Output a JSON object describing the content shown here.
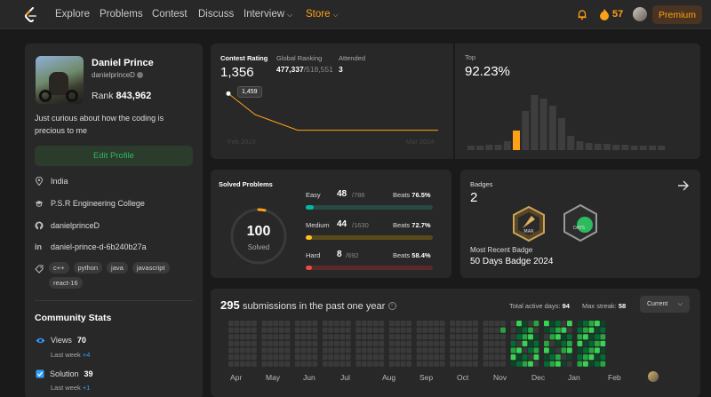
{
  "nav": {
    "items": [
      "Explore",
      "Problems",
      "Contest",
      "Discuss",
      "Interview",
      "Store"
    ],
    "streak": "57",
    "premium": "Premium"
  },
  "profile": {
    "name": "Daniel Prince",
    "handle": "danielprinceD",
    "rank_label": "Rank",
    "rank_value": "843,962",
    "bio": "Just curious about how the coding is precious to me",
    "edit_label": "Edit Profile",
    "location": "India",
    "college": "P.S.R Engineering College",
    "github": "danielprinceD",
    "linkedin": "daniel-prince-d-6b240b27a",
    "tags": [
      "c++",
      "python",
      "java",
      "javascript",
      "react-16"
    ]
  },
  "community": {
    "title": "Community Stats",
    "stats": [
      {
        "label": "Views",
        "value": "70",
        "sub_label": "Last week",
        "sub_value": "+4"
      },
      {
        "label": "Solution",
        "value": "39",
        "sub_label": "Last week",
        "sub_value": "+1"
      }
    ]
  },
  "contest": {
    "rating_label": "Contest Rating",
    "rating_value": "1,356",
    "global_label": "Global Ranking",
    "global_value": "477,337",
    "global_total": "/518,551",
    "attended_label": "Attended",
    "attended_value": "3",
    "tooltip": "1,459",
    "x_start": "Feb 2023",
    "x_end": "Mar 2024",
    "top_label": "Top",
    "top_value": "92.23%"
  },
  "chart_data": {
    "type": "line",
    "x": [
      "Feb 2023",
      "",
      "",
      "Mar 2024"
    ],
    "series": [
      {
        "values": [
          1459,
          1400,
          1356,
          1356
        ]
      }
    ]
  },
  "solved": {
    "title": "Solved Problems",
    "total": "100",
    "total_label": "Solved",
    "diffs": [
      {
        "name": "Easy",
        "count": "48",
        "total": "/786",
        "beats_label": "Beats",
        "beats": "76.5%",
        "fill": 0.061,
        "color": "#00b8a3",
        "track": "#274a45"
      },
      {
        "name": "Medium",
        "count": "44",
        "total": "/1630",
        "beats_label": "Beats",
        "beats": "72.7%",
        "fill": 0.027,
        "color": "#ffc01e",
        "track": "#5a4a1a"
      },
      {
        "name": "Hard",
        "count": "8",
        "total": "/692",
        "beats_label": "Beats",
        "beats": "58.4%",
        "fill": 0.012,
        "color": "#ef4743",
        "track": "#5a2a2a"
      }
    ]
  },
  "badges": {
    "title": "Badges",
    "count": "2",
    "recent_label": "Most Recent Badge",
    "recent_name": "50 Days Badge 2024",
    "badge1_text": "MAR",
    "badge2_text": "DAYS"
  },
  "submissions": {
    "count": "295",
    "text": "submissions in the past one year",
    "active_label": "Total active days:",
    "active_value": "94",
    "streak_label": "Max streak:",
    "streak_value": "58",
    "current_label": "Current",
    "months": [
      "Apr",
      "May",
      "Jun",
      "Jul",
      "Aug",
      "Sep",
      "Oct",
      "Nov",
      "Dec",
      "Jan",
      "Feb"
    ]
  },
  "colors": {
    "accent": "#ffa116",
    "green": "#2cbb5d",
    "easy": "#00b8a3",
    "medium": "#ffc01e",
    "hard": "#ef4743"
  }
}
